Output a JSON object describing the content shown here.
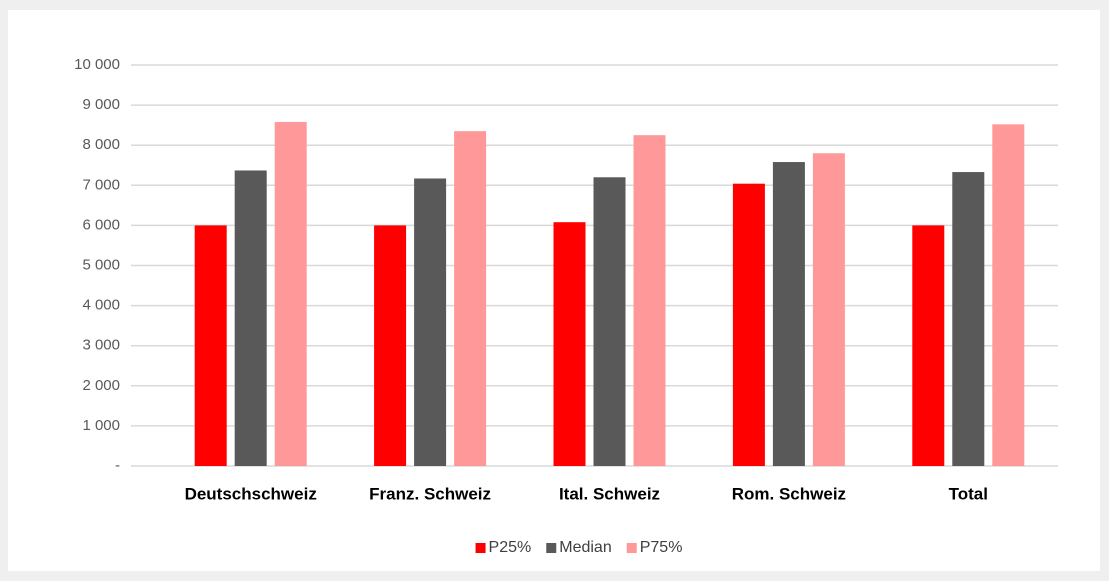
{
  "chart_data": {
    "type": "bar",
    "categories": [
      "Deutschschweiz",
      "Franz. Schweiz",
      "Ital. Schweiz",
      "Rom. Schweiz",
      "Total"
    ],
    "series": [
      {
        "name": "P25%",
        "color": "#ff0000",
        "values": [
          6000,
          6000,
          6080,
          7040,
          6000
        ]
      },
      {
        "name": "Median",
        "color": "#595959",
        "values": [
          7370,
          7170,
          7200,
          7580,
          7330
        ]
      },
      {
        "name": "P75%",
        "color": "#ff9999",
        "values": [
          8580,
          8350,
          8250,
          7800,
          8520
        ]
      }
    ],
    "ylim": [
      0,
      10000
    ],
    "yticks": [
      {
        "value": 0,
        "label": "-"
      },
      {
        "value": 1000,
        "label": "1 000"
      },
      {
        "value": 2000,
        "label": "2 000"
      },
      {
        "value": 3000,
        "label": "3 000"
      },
      {
        "value": 4000,
        "label": "4 000"
      },
      {
        "value": 5000,
        "label": "5 000"
      },
      {
        "value": 6000,
        "label": "6 000"
      },
      {
        "value": 7000,
        "label": "7 000"
      },
      {
        "value": 8000,
        "label": "8 000"
      },
      {
        "value": 9000,
        "label": "9 000"
      },
      {
        "value": 10000,
        "label": "10 000"
      }
    ],
    "grid": true,
    "legend": "bottom"
  }
}
